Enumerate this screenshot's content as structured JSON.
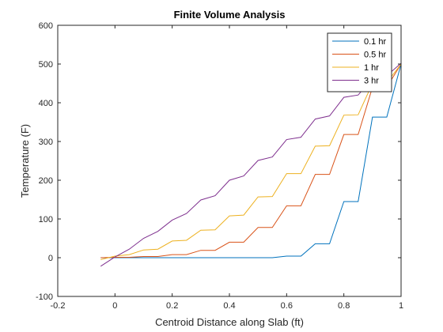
{
  "chart_data": {
    "type": "line",
    "title": "Finite Volume Analysis",
    "xlabel": "Centroid Distance along Slab (ft)",
    "ylabel": "Temperature (F)",
    "xlim": [
      -0.2,
      1
    ],
    "ylim": [
      -100,
      600
    ],
    "xticks": [
      -0.2,
      0,
      0.2,
      0.4,
      0.6,
      0.8,
      1
    ],
    "xtick_labels": [
      "-0.2",
      "0",
      "0.2",
      "0.4",
      "0.6",
      "0.8",
      "1"
    ],
    "yticks": [
      -100,
      0,
      100,
      200,
      300,
      400,
      500,
      600
    ],
    "ytick_labels": [
      "-100",
      "0",
      "100",
      "200",
      "300",
      "400",
      "500",
      "600"
    ],
    "grid": false,
    "legend_position": "top-right",
    "series": [
      {
        "name": "0.1 hr",
        "color": "#0072BD",
        "x": [
          -0.05,
          0,
          0.05,
          0.1,
          0.15,
          0.2,
          0.25,
          0.3,
          0.35,
          0.4,
          0.45,
          0.5,
          0.55,
          0.6,
          0.65,
          0.7,
          0.75,
          0.8,
          0.85,
          0.9,
          0.95,
          1.0
        ],
        "y": [
          0,
          0,
          0,
          0,
          0,
          0,
          0,
          0,
          0,
          0,
          0,
          0,
          0,
          4,
          4,
          36,
          36,
          145,
          145,
          363,
          363,
          500
        ]
      },
      {
        "name": "0.5 hr",
        "color": "#D95319",
        "x": [
          -0.05,
          0,
          0.05,
          0.1,
          0.15,
          0.2,
          0.25,
          0.3,
          0.35,
          0.4,
          0.45,
          0.5,
          0.55,
          0.6,
          0.65,
          0.7,
          0.75,
          0.8,
          0.85,
          0.9,
          0.95,
          1.0
        ],
        "y": [
          0,
          1,
          1,
          3,
          3,
          8,
          8,
          19,
          19,
          40,
          40,
          78,
          78,
          134,
          134,
          215,
          215,
          318,
          318,
          440,
          440,
          500
        ]
      },
      {
        "name": "1 hr",
        "color": "#EDB120",
        "x": [
          -0.05,
          0,
          0.05,
          0.1,
          0.15,
          0.2,
          0.25,
          0.3,
          0.35,
          0.4,
          0.45,
          0.5,
          0.55,
          0.6,
          0.65,
          0.7,
          0.75,
          0.8,
          0.85,
          0.9,
          0.95,
          1.0
        ],
        "y": [
          -5,
          4,
          8,
          20,
          22,
          43,
          45,
          71,
          72,
          108,
          110,
          157,
          158,
          217,
          217,
          288,
          289,
          368,
          369,
          450,
          452,
          500
        ]
      },
      {
        "name": "3 hr",
        "color": "#7E2F8E",
        "x": [
          -0.05,
          0,
          0.05,
          0.1,
          0.15,
          0.2,
          0.25,
          0.3,
          0.35,
          0.4,
          0.45,
          0.5,
          0.55,
          0.6,
          0.65,
          0.7,
          0.75,
          0.8,
          0.85,
          0.9,
          0.95,
          1.0
        ],
        "y": [
          -22,
          2,
          22,
          50,
          68,
          97,
          114,
          149,
          160,
          200,
          211,
          251,
          260,
          305,
          311,
          358,
          366,
          414,
          420,
          463,
          470,
          502
        ]
      }
    ]
  }
}
